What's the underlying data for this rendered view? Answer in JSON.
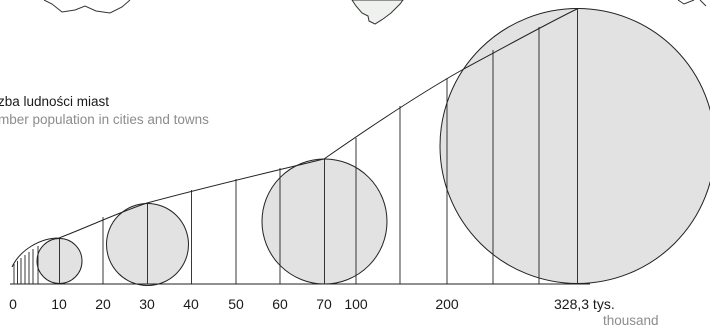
{
  "legend": {
    "title_pl": "zba ludności miast",
    "title_en": "mber population in cities and towns",
    "unit_label": "328,3 tys.",
    "unit_en": "thousand"
  },
  "scale": {
    "ticks": [
      "0",
      "10",
      "20",
      "30",
      "40",
      "50",
      "60",
      "70",
      "100",
      "200",
      "328,3 tys."
    ],
    "circles": [
      {
        "label": "10",
        "value": 10
      },
      {
        "label": "30",
        "value": 30
      },
      {
        "label": "70",
        "value": 70
      },
      {
        "label": "328,3 tys.",
        "value": 328.3
      }
    ]
  },
  "colors": {
    "circle_fill": "#e2e2e2",
    "map_fill": "#eef1ee",
    "line": "#222222",
    "secondary_text": "#8c8c8c"
  }
}
